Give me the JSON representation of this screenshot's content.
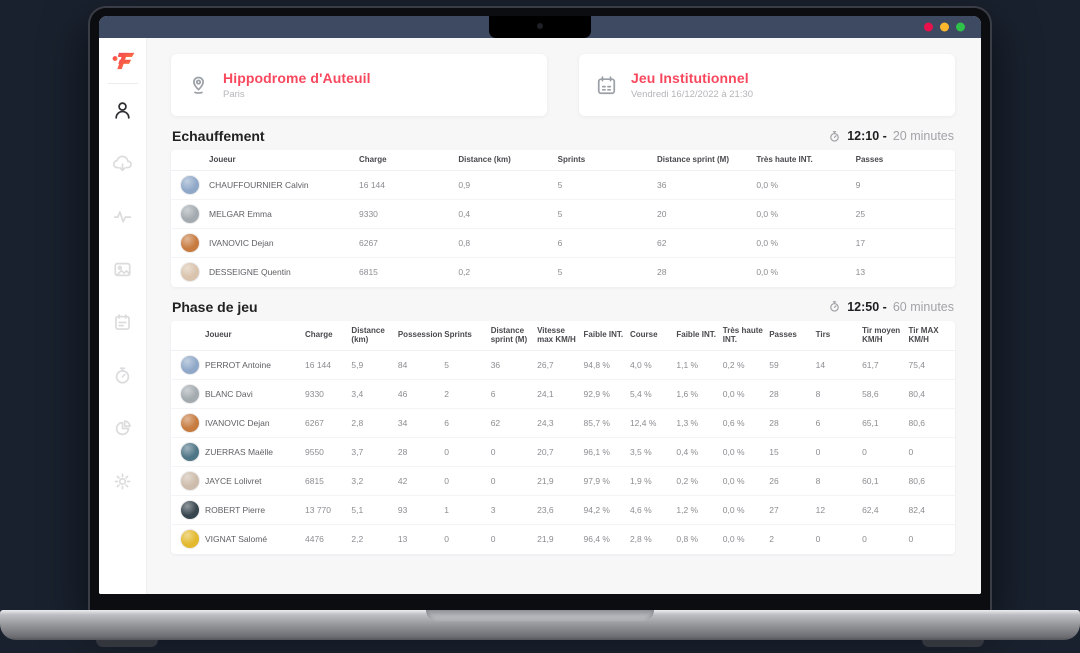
{
  "colors": {
    "accent": "#f8485e",
    "titlebar": "#3e4a61",
    "traffic_lights": [
      "#e8114b",
      "#fdb82d",
      "#2fc149"
    ],
    "logo_gradient": [
      "#f43b57",
      "#fb7a3c"
    ]
  },
  "sidebar": {
    "icons": [
      "user",
      "cloud-download",
      "activity",
      "gallery",
      "planner",
      "stopwatch",
      "pie-chart",
      "settings"
    ]
  },
  "header_cards": [
    {
      "icon": "location-pin",
      "title": "Hippodrome d'Auteuil",
      "subtitle": "Paris"
    },
    {
      "icon": "calendar",
      "title": "Jeu Institutionnel",
      "subtitle": "Vendredi 16/12/2022 à 21:30"
    }
  ],
  "sections": [
    {
      "title": "Echauffement",
      "time": "12:10 -",
      "duration": "20 minutes",
      "columns": [
        "Joueur",
        "Charge",
        "Distance (km)",
        "Sprints",
        "Distance sprint (M)",
        "Très haute INT.",
        "Passes"
      ],
      "rows": [
        {
          "player": "CHAUFFOURNIER Calvin",
          "avatar_color": "#8fa8c8",
          "values": [
            "16 144",
            "0,9",
            "5",
            "36",
            "0,0 %",
            "9"
          ]
        },
        {
          "player": "MELGAR Emma",
          "avatar_color": "#a3abb0",
          "values": [
            "9330",
            "0,4",
            "5",
            "20",
            "0,0 %",
            "25"
          ]
        },
        {
          "player": "IVANOVIC Dejan",
          "avatar_color": "#c77b3f",
          "values": [
            "6267",
            "0,8",
            "6",
            "62",
            "0,0 %",
            "17"
          ]
        },
        {
          "player": "DESSEIGNE Quentin",
          "avatar_color": "#d9c3ac",
          "values": [
            "6815",
            "0,2",
            "5",
            "28",
            "0,0 %",
            "13"
          ]
        }
      ]
    },
    {
      "title": "Phase de jeu",
      "time": "12:50 -",
      "duration": "60 minutes",
      "columns": [
        "Joueur",
        "Charge",
        "Distance (km)",
        "Possession",
        "Sprints",
        "Distance sprint (M)",
        "Vitesse max KM/H",
        "Faible INT.",
        "Course",
        "Faible INT.",
        "Très haute INT.",
        "Passes",
        "Tirs",
        "Tir moyen KM/H",
        "Tir MAX KM/H"
      ],
      "rows": [
        {
          "player": "PERROT Antoine",
          "avatar_color": "#8fa8c8",
          "values": [
            "16 144",
            "5,9",
            "84",
            "5",
            "36",
            "26,7",
            "94,8 %",
            "4,0 %",
            "1,1 %",
            "0,2 %",
            "59",
            "14",
            "61,7",
            "75,4"
          ]
        },
        {
          "player": "BLANC Davi",
          "avatar_color": "#a3abb0",
          "values": [
            "9330",
            "3,4",
            "46",
            "2",
            "6",
            "24,1",
            "92,9 %",
            "5,4 %",
            "1,6 %",
            "0,0 %",
            "28",
            "8",
            "58,6",
            "80,4"
          ]
        },
        {
          "player": "IVANOVIC Dejan",
          "avatar_color": "#c77b3f",
          "values": [
            "6267",
            "2,8",
            "34",
            "6",
            "62",
            "24,3",
            "85,7 %",
            "12,4 %",
            "1,3 %",
            "0,6 %",
            "28",
            "6",
            "65,1",
            "80,6"
          ]
        },
        {
          "player": "ZUERRAS Maëlle",
          "avatar_color": "#4f7586",
          "values": [
            "9550",
            "3,7",
            "28",
            "0",
            "0",
            "20,7",
            "96,1 %",
            "3,5 %",
            "0,4 %",
            "0,0 %",
            "15",
            "0",
            "0",
            "0"
          ]
        },
        {
          "player": "JAYCE Lolivret",
          "avatar_color": "#cdbcab",
          "values": [
            "6815",
            "3,2",
            "42",
            "0",
            "0",
            "21,9",
            "97,9 %",
            "1,9 %",
            "0,2 %",
            "0,0 %",
            "26",
            "8",
            "60,1",
            "80,6"
          ]
        },
        {
          "player": "ROBERT Pierre",
          "avatar_color": "#37454e",
          "values": [
            "13 770",
            "5,1",
            "93",
            "1",
            "3",
            "23,6",
            "94,2 %",
            "4,6 %",
            "1,2 %",
            "0,0 %",
            "27",
            "12",
            "62,4",
            "82,4"
          ]
        },
        {
          "player": "VIGNAT Salomé",
          "avatar_color": "#e3b92e",
          "values": [
            "4476",
            "2,2",
            "13",
            "0",
            "0",
            "21,9",
            "96,4 %",
            "2,8 %",
            "0,8 %",
            "0,0 %",
            "2",
            "0",
            "0",
            "0"
          ]
        }
      ]
    }
  ]
}
